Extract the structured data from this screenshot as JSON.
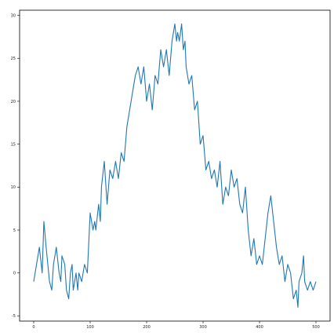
{
  "chart_data": {
    "type": "line",
    "title": "",
    "xlabel": "",
    "ylabel": "",
    "xlim": [
      -25,
      525
    ],
    "ylim": [
      -5.6,
      30.6
    ],
    "grid": false,
    "xticks": [
      0,
      100,
      200,
      300,
      400,
      500
    ],
    "yticks": [
      -5,
      0,
      5,
      10,
      15,
      20,
      25,
      30
    ],
    "colors": {
      "line": "#1f77b4",
      "axes": "#000000",
      "background": "#ffffff"
    },
    "series": [
      {
        "x": [
          0,
          5,
          10,
          15,
          18,
          22,
          25,
          28,
          32,
          35,
          40,
          45,
          48,
          50,
          55,
          58,
          62,
          65,
          68,
          70,
          75,
          78,
          80,
          85,
          90,
          95,
          100,
          105,
          108,
          110,
          115,
          118,
          120,
          125,
          130,
          135,
          140,
          145,
          150,
          155,
          160,
          165,
          170,
          175,
          180,
          185,
          190,
          195,
          200,
          205,
          210,
          215,
          220,
          225,
          230,
          235,
          240,
          245,
          250,
          253,
          255,
          258,
          262,
          265,
          268,
          270,
          275,
          280,
          285,
          290,
          295,
          300,
          305,
          310,
          315,
          320,
          325,
          330,
          335,
          340,
          345,
          350,
          355,
          360,
          365,
          370,
          375,
          380,
          385,
          390,
          395,
          400,
          405,
          410,
          415,
          420,
          425,
          430,
          435,
          440,
          445,
          450,
          455,
          460,
          465,
          468,
          470,
          475,
          478,
          480,
          485,
          490,
          495,
          500
        ],
        "y": [
          -1,
          1,
          3,
          0,
          6,
          3,
          1,
          -1,
          -2,
          1,
          3,
          0,
          -1,
          2,
          1,
          -2,
          -3,
          0,
          1,
          -2,
          0,
          -2,
          0,
          -1,
          1,
          0,
          7,
          5,
          6,
          5,
          8,
          6,
          10,
          13,
          8,
          12,
          11,
          13,
          11,
          14,
          13,
          17,
          19,
          21,
          23,
          24,
          22,
          24,
          20,
          22,
          19,
          23,
          22,
          26,
          24,
          26,
          23,
          27,
          29,
          27,
          28,
          27,
          29,
          26,
          27,
          24,
          22,
          23,
          19,
          20,
          15,
          16,
          12,
          13,
          11,
          12,
          10,
          13,
          8,
          10,
          9,
          12,
          10,
          11,
          8,
          7,
          10,
          5,
          2,
          4,
          1,
          2,
          1,
          4,
          7,
          9,
          6,
          3,
          1,
          2,
          -1,
          1,
          0,
          -3,
          -2,
          -4,
          -1,
          0,
          2,
          -1,
          -2,
          -1,
          -2,
          -1
        ]
      }
    ]
  }
}
